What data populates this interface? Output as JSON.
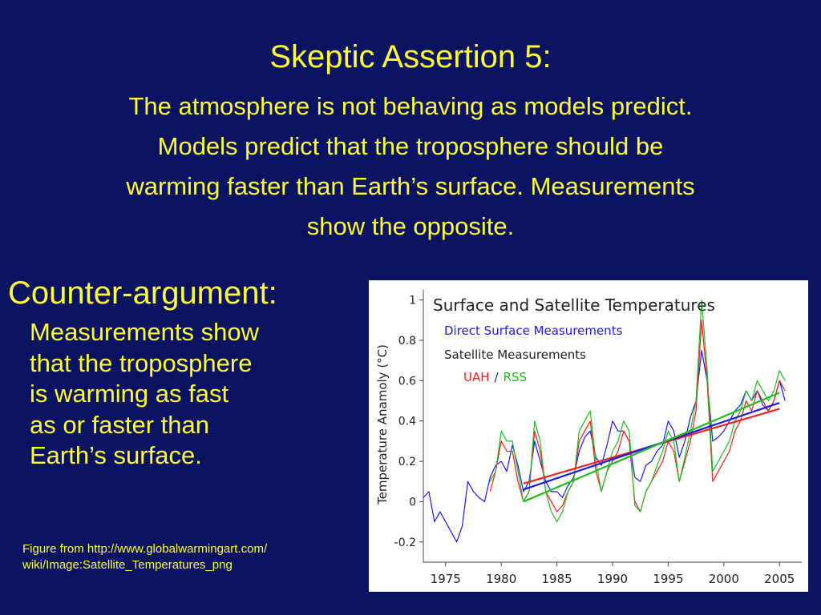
{
  "slide": {
    "title": "Skeptic Assertion 5:",
    "subtitle_lines": [
      "The atmosphere is not behaving as models predict.",
      "Models predict that the troposphere should be",
      "warming faster than Earth’s surface.  Measurements",
      "show the opposite."
    ],
    "counter_heading": "Counter-argument:",
    "counter_lines": [
      "Measurements show",
      "that the troposphere",
      "is warming as fast",
      "as or faster than",
      "Earth’s surface."
    ],
    "credit_lines": [
      "Figure from http://www.globalwarmingart.com/",
      "wiki/Image:Satellite_Temperatures_png"
    ],
    "text_color": "#ffff33",
    "background_color": "#0b1463"
  },
  "chart_data": {
    "type": "line",
    "title": "Surface and Satellite Temperatures",
    "ylabel": "Temperature Anamoly (°C)",
    "xlabel": "",
    "legend": {
      "direct_label": "Direct Surface Measurements",
      "satellite_label": "Satellite Measurements",
      "uah_label": "UAH",
      "separator": "/",
      "rss_label": "RSS",
      "placement": "top-left"
    },
    "xlim": [
      1973,
      2007
    ],
    "ylim": [
      -0.3,
      1.05
    ],
    "x_ticks": [
      1975,
      1980,
      1985,
      1990,
      1995,
      2000,
      2005
    ],
    "y_ticks": [
      -0.2,
      0,
      0.2,
      0.4,
      0.6,
      0.8,
      1
    ],
    "y_tick_labels": [
      "-0.2",
      "0",
      "0.2",
      "0.4",
      "0.6",
      "0.8",
      "1"
    ],
    "colors": {
      "Direct Surface Measurements": "#1a1aee",
      "UAH": "#ee2222",
      "RSS": "#22bb22"
    },
    "series": [
      {
        "name": "Direct Surface Measurements",
        "x": [
          1973.0,
          1973.5,
          1974.0,
          1974.5,
          1975.0,
          1975.5,
          1976.0,
          1976.5,
          1977.0,
          1977.5,
          1978.0,
          1978.5,
          1979.0,
          1979.5,
          1980.0,
          1980.5,
          1981.0,
          1981.5,
          1982.0,
          1982.5,
          1983.0,
          1983.5,
          1984.0,
          1984.5,
          1985.0,
          1985.5,
          1986.0,
          1986.5,
          1987.0,
          1987.5,
          1988.0,
          1988.5,
          1989.0,
          1989.5,
          1990.0,
          1990.5,
          1991.0,
          1991.5,
          1992.0,
          1992.5,
          1993.0,
          1993.5,
          1994.0,
          1994.5,
          1995.0,
          1995.5,
          1996.0,
          1996.5,
          1997.0,
          1997.5,
          1998.0,
          1998.5,
          1999.0,
          1999.5,
          2000.0,
          2000.5,
          2001.0,
          2001.5,
          2002.0,
          2002.5,
          2003.0,
          2003.5,
          2004.0,
          2004.5,
          2005.0,
          2005.5
        ],
        "y": [
          0.02,
          0.05,
          -0.1,
          -0.05,
          -0.1,
          -0.15,
          -0.2,
          -0.12,
          0.1,
          0.05,
          0.02,
          0.0,
          0.12,
          0.18,
          0.2,
          0.15,
          0.28,
          0.18,
          0.05,
          0.1,
          0.3,
          0.2,
          0.1,
          0.05,
          0.05,
          0.02,
          0.08,
          0.12,
          0.25,
          0.32,
          0.35,
          0.22,
          0.18,
          0.28,
          0.4,
          0.35,
          0.35,
          0.3,
          0.12,
          0.1,
          0.18,
          0.2,
          0.25,
          0.28,
          0.4,
          0.35,
          0.22,
          0.3,
          0.42,
          0.5,
          0.75,
          0.6,
          0.3,
          0.32,
          0.35,
          0.4,
          0.45,
          0.48,
          0.55,
          0.5,
          0.55,
          0.48,
          0.45,
          0.5,
          0.6,
          0.5
        ]
      },
      {
        "name": "UAH",
        "x": [
          1979.0,
          1979.5,
          1980.0,
          1980.5,
          1981.0,
          1981.5,
          1982.0,
          1982.5,
          1983.0,
          1983.5,
          1984.0,
          1984.5,
          1985.0,
          1985.5,
          1986.0,
          1986.5,
          1987.0,
          1987.5,
          1988.0,
          1988.5,
          1989.0,
          1989.5,
          1990.0,
          1990.5,
          1991.0,
          1991.5,
          1992.0,
          1992.5,
          1993.0,
          1993.5,
          1994.0,
          1994.5,
          1995.0,
          1995.5,
          1996.0,
          1996.5,
          1997.0,
          1997.5,
          1998.0,
          1998.5,
          1999.0,
          1999.5,
          2000.0,
          2000.5,
          2001.0,
          2001.5,
          2002.0,
          2002.5,
          2003.0,
          2003.5,
          2004.0,
          2004.5,
          2005.0,
          2005.5
        ],
        "y": [
          0.05,
          0.15,
          0.3,
          0.25,
          0.25,
          0.1,
          0.0,
          0.05,
          0.35,
          0.25,
          0.05,
          0.0,
          -0.05,
          -0.02,
          0.05,
          0.1,
          0.3,
          0.35,
          0.4,
          0.15,
          0.05,
          0.15,
          0.2,
          0.25,
          0.35,
          0.3,
          0.0,
          -0.05,
          0.05,
          0.1,
          0.15,
          0.2,
          0.3,
          0.25,
          0.1,
          0.2,
          0.3,
          0.45,
          0.9,
          0.6,
          0.1,
          0.15,
          0.2,
          0.25,
          0.35,
          0.4,
          0.5,
          0.45,
          0.55,
          0.5,
          0.45,
          0.5,
          0.6,
          0.55
        ]
      },
      {
        "name": "RSS",
        "x": [
          1979.0,
          1979.5,
          1980.0,
          1980.5,
          1981.0,
          1981.5,
          1982.0,
          1982.5,
          1983.0,
          1983.5,
          1984.0,
          1984.5,
          1985.0,
          1985.5,
          1986.0,
          1986.5,
          1987.0,
          1987.5,
          1988.0,
          1988.5,
          1989.0,
          1989.5,
          1990.0,
          1990.5,
          1991.0,
          1991.5,
          1992.0,
          1992.5,
          1993.0,
          1993.5,
          1994.0,
          1994.5,
          1995.0,
          1995.5,
          1996.0,
          1996.5,
          1997.0,
          1997.5,
          1998.0,
          1998.5,
          1999.0,
          1999.5,
          2000.0,
          2000.5,
          2001.0,
          2001.5,
          2002.0,
          2002.5,
          2003.0,
          2003.5,
          2004.0,
          2004.5,
          2005.0,
          2005.5
        ],
        "y": [
          0.1,
          0.15,
          0.35,
          0.3,
          0.3,
          0.15,
          0.0,
          0.05,
          0.4,
          0.3,
          0.05,
          -0.05,
          -0.1,
          -0.05,
          0.05,
          0.1,
          0.35,
          0.4,
          0.45,
          0.2,
          0.05,
          0.15,
          0.25,
          0.3,
          0.4,
          0.35,
          -0.02,
          -0.05,
          0.05,
          0.1,
          0.18,
          0.25,
          0.35,
          0.3,
          0.1,
          0.22,
          0.35,
          0.5,
          1.0,
          0.65,
          0.15,
          0.2,
          0.25,
          0.3,
          0.4,
          0.45,
          0.55,
          0.5,
          0.6,
          0.55,
          0.5,
          0.55,
          0.65,
          0.6
        ]
      }
    ],
    "trends": [
      {
        "name": "UAH",
        "x": [
          1982,
          2005
        ],
        "y": [
          0.09,
          0.46
        ]
      },
      {
        "name": "Direct Surface Measurements",
        "x": [
          1982,
          2005
        ],
        "y": [
          0.06,
          0.49
        ]
      },
      {
        "name": "RSS",
        "x": [
          1982,
          2005
        ],
        "y": [
          0.0,
          0.54
        ]
      }
    ],
    "grid": false
  }
}
